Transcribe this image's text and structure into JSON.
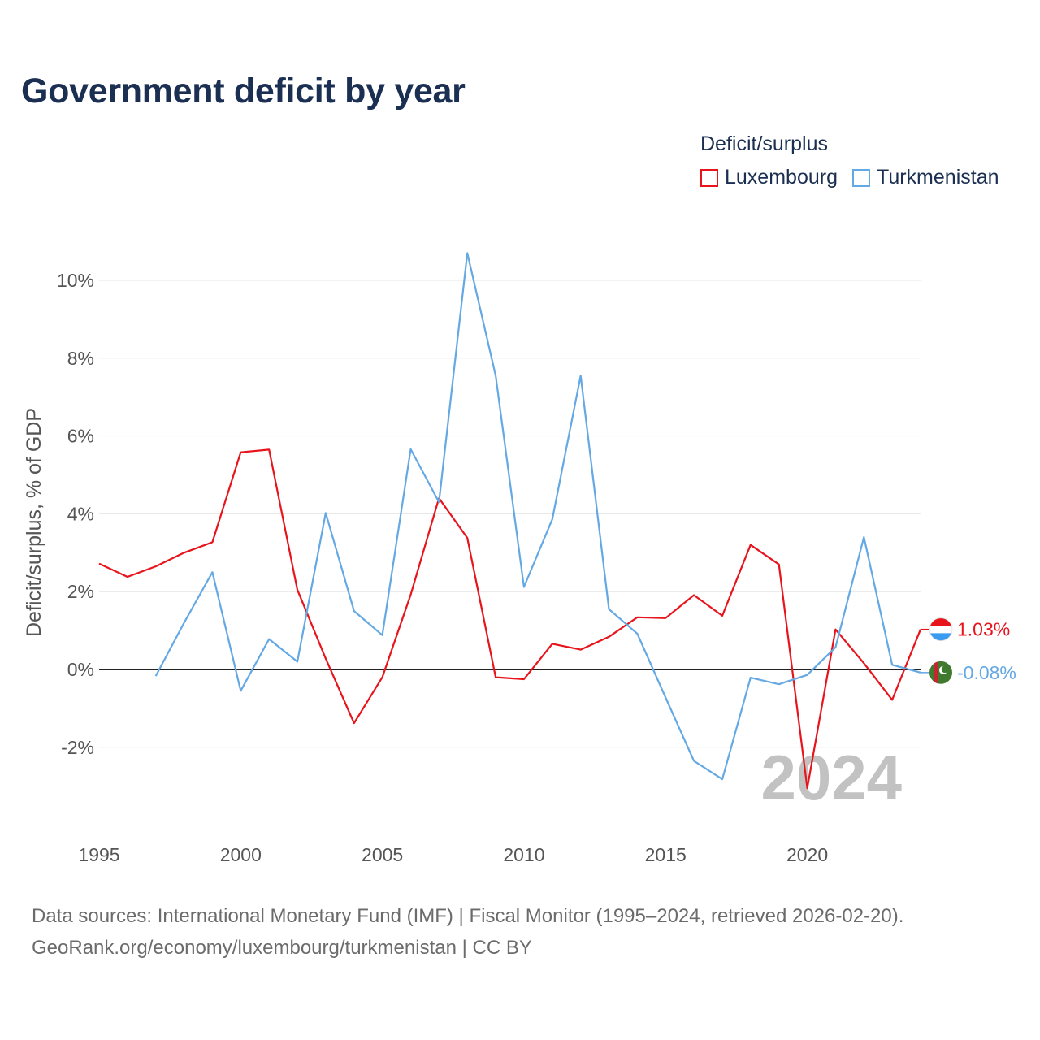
{
  "title": "Government deficit by year",
  "legend": {
    "title": "Deficit/surplus",
    "items": [
      {
        "label": "Luxembourg",
        "color": "#e8141c"
      },
      {
        "label": "Turkmenistan",
        "color": "#64a8e4"
      }
    ]
  },
  "footer": {
    "line1": "Data sources: International Monetary Fund (IMF) | Fiscal Monitor (1995–2024, retrieved 2026-02-20).",
    "line2": "GeoRank.org/economy/luxembourg/turkmenistan | CC BY"
  },
  "chart_data": {
    "type": "line",
    "title": "Government deficit by year",
    "xlabel": "",
    "ylabel": "Deficit/surplus, % of GDP",
    "xlim": [
      1995,
      2024
    ],
    "ylim": [
      -4,
      11
    ],
    "x_ticks": [
      1995,
      2000,
      2005,
      2010,
      2015,
      2020
    ],
    "x_tick_labels": [
      "1995",
      "2000",
      "2005",
      "2010",
      "2015",
      "2020"
    ],
    "y_ticks": [
      -2,
      0,
      2,
      4,
      6,
      8,
      10
    ],
    "y_tick_labels": [
      "-2%",
      "0%",
      "2%",
      "4%",
      "6%",
      "8%",
      "10%"
    ],
    "grid": true,
    "year_watermark": "2024",
    "series": [
      {
        "name": "Luxembourg",
        "color": "#e8141c",
        "end_label": "1.03%",
        "x": [
          1995,
          1996,
          1997,
          1998,
          1999,
          2000,
          2001,
          2002,
          2003,
          2004,
          2005,
          2006,
          2007,
          2008,
          2009,
          2010,
          2011,
          2012,
          2013,
          2014,
          2015,
          2016,
          2017,
          2018,
          2019,
          2020,
          2021,
          2022,
          2023,
          2024
        ],
        "values": [
          2.72,
          2.38,
          2.65,
          3.0,
          3.27,
          5.58,
          5.65,
          2.05,
          0.28,
          -1.38,
          -0.2,
          1.92,
          4.4,
          3.38,
          -0.2,
          -0.25,
          0.66,
          0.51,
          0.84,
          1.34,
          1.32,
          1.91,
          1.38,
          3.2,
          2.7,
          -3.05,
          1.03,
          0.16,
          -0.78,
          1.03
        ]
      },
      {
        "name": "Turkmenistan",
        "color": "#64a8e4",
        "end_label": "-0.08%",
        "x": [
          1997,
          1998,
          1999,
          2000,
          2001,
          2002,
          2003,
          2004,
          2005,
          2006,
          2007,
          2008,
          2009,
          2010,
          2011,
          2012,
          2013,
          2014,
          2015,
          2016,
          2017,
          2018,
          2019,
          2020,
          2021,
          2022,
          2023,
          2024
        ],
        "values": [
          -0.17,
          1.2,
          2.5,
          -0.55,
          0.78,
          0.2,
          4.02,
          1.5,
          0.88,
          5.66,
          4.3,
          10.7,
          7.55,
          2.12,
          3.86,
          7.55,
          1.55,
          0.92,
          -0.72,
          -2.35,
          -2.82,
          -0.21,
          -0.38,
          -0.14,
          0.57,
          3.4,
          0.12,
          -0.08
        ]
      }
    ]
  }
}
